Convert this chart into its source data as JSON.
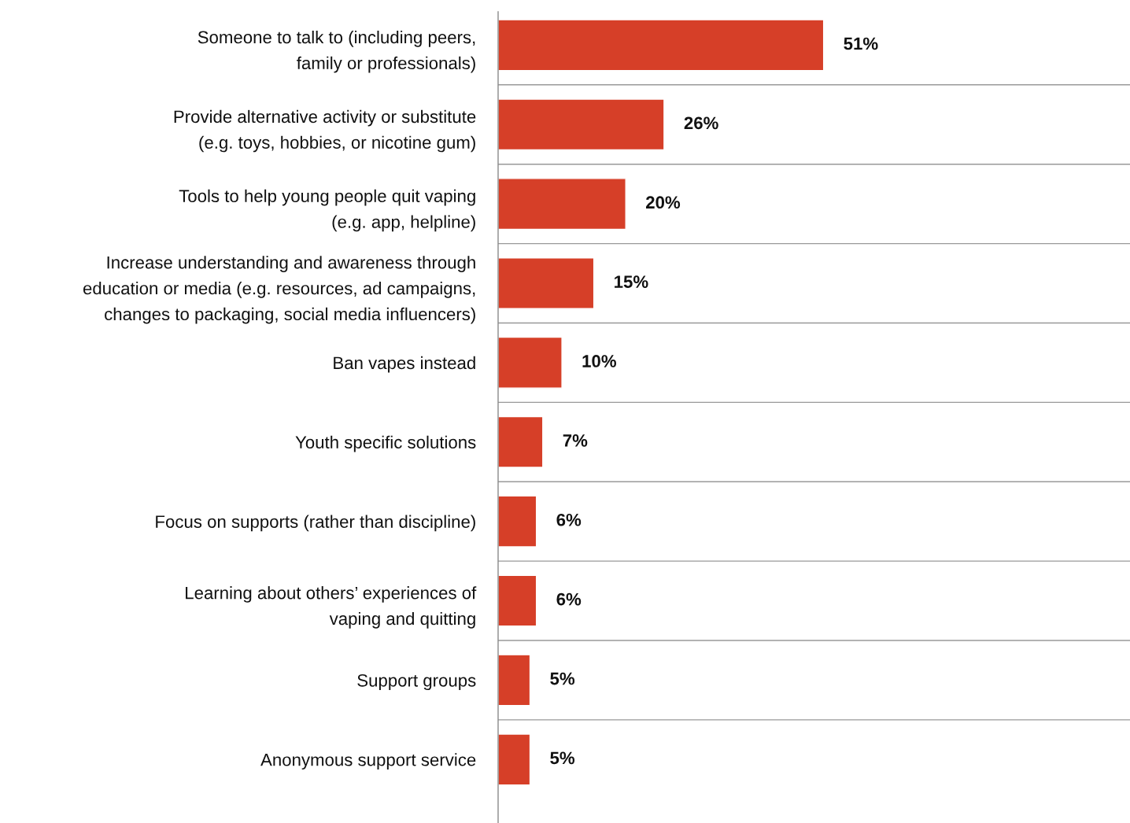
{
  "chart_data": {
    "type": "bar",
    "orientation": "horizontal",
    "categories": [
      "Someone to talk to (including peers,\nfamily or professionals)",
      "Provide alternative activity or substitute\n(e.g. toys, hobbies, or nicotine gum)",
      "Tools to help young people quit vaping\n(e.g. app, helpline)",
      "Increase understanding and awareness through\neducation or media (e.g. resources, ad campaigns,\nchanges to packaging, social media influencers)",
      "Ban vapes instead",
      "Youth specific solutions",
      "Focus on supports (rather than discipline)",
      "Learning about others’ experiences of\nvaping and quitting",
      "Support groups",
      "Anonymous support service"
    ],
    "values": [
      51,
      26,
      20,
      15,
      10,
      7,
      6,
      6,
      5,
      5
    ],
    "value_labels": [
      "51%",
      "26%",
      "20%",
      "15%",
      "10%",
      "7%",
      "6%",
      "6%",
      "5%",
      "5%"
    ],
    "color": "#d63f28",
    "xlim": [
      0,
      99
    ],
    "grid": "y",
    "legend": false,
    "tick_labels": "y"
  }
}
